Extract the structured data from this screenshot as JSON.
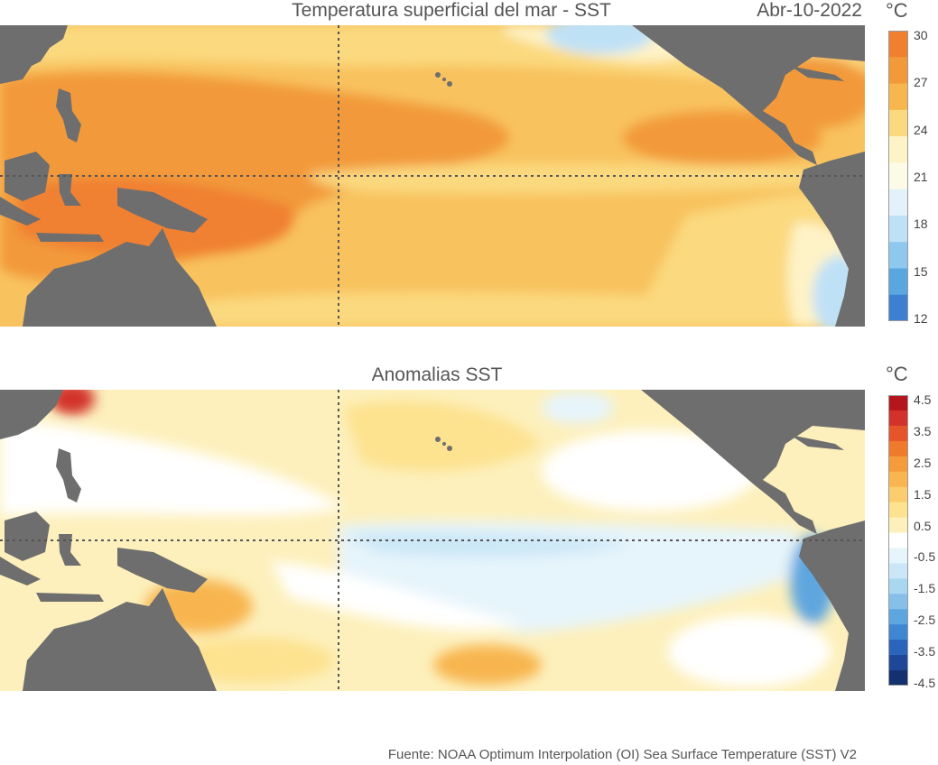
{
  "top_panel": {
    "title": "Temperatura superficial del mar - SST",
    "date": "Abr-10-2022",
    "unit": "°C",
    "colorbar": {
      "ticks": [
        "30",
        "27",
        "24",
        "21",
        "18",
        "15",
        "12"
      ],
      "colors": [
        "#f08030",
        "#f29a3a",
        "#f7b74e",
        "#fbd97f",
        "#fef3c7",
        "#fdfbe8",
        "#e3f1fa",
        "#bfe1f6",
        "#8ec8ee",
        "#5aa7e0",
        "#3d7fd0"
      ]
    }
  },
  "bottom_panel": {
    "title": "Anomalias SST",
    "unit": "°C",
    "colorbar": {
      "ticks": [
        "4.5",
        "3.5",
        "2.5",
        "1.5",
        "0.5",
        "-0.5",
        "-1.5",
        "-2.5",
        "-3.5",
        "-4.5"
      ],
      "colors": [
        "#b5151c",
        "#d2322a",
        "#e6552a",
        "#f07a2c",
        "#f59b3c",
        "#f8b550",
        "#fbcd6c",
        "#fde28f",
        "#fdf0bc",
        "#ffffff",
        "#e6f4fb",
        "#cbe7f7",
        "#a9d6f1",
        "#86c0e9",
        "#5ea6df",
        "#3f86d3",
        "#2a64bb",
        "#1e4897",
        "#14306e"
      ]
    }
  },
  "source": "Fuente: NOAA Optimum Interpolation (OI) Sea Surface Temperature (SST) V2",
  "colors": {
    "land": "#6e6e6e",
    "text": "#555555",
    "guide_lines": "#555555"
  }
}
